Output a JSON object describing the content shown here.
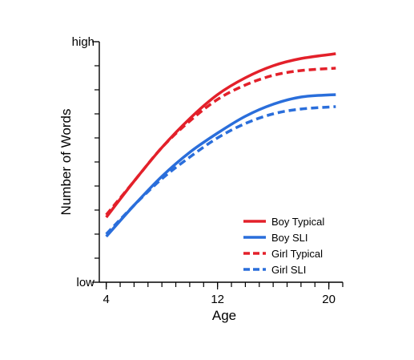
{
  "chart_data": {
    "type": "line",
    "title": "",
    "xlabel": "Age",
    "ylabel": "Number of Words",
    "x_ticks": [
      {
        "value": 4,
        "label": "4"
      },
      {
        "value": 12,
        "label": "12"
      },
      {
        "value": 20,
        "label": "20"
      }
    ],
    "y_ticks": [
      {
        "value": 0,
        "label": "low"
      },
      {
        "value": 1,
        "label": "high"
      }
    ],
    "xlim": [
      3.5,
      21
    ],
    "ylim": [
      0,
      1
    ],
    "x_minor_step": 1,
    "y_minor_step": 0.1,
    "grid": false,
    "legend_position": "bottom-right",
    "series": [
      {
        "name": "Boy Typical",
        "color": "#e3202a",
        "dash": "solid",
        "x": [
          4,
          6,
          8,
          10,
          12,
          14,
          16,
          18,
          20.5
        ],
        "y": [
          0.27,
          0.42,
          0.56,
          0.68,
          0.78,
          0.85,
          0.9,
          0.93,
          0.95
        ]
      },
      {
        "name": "Boy SLI",
        "color": "#2a6edb",
        "dash": "solid",
        "x": [
          4,
          6,
          8,
          10,
          12,
          14,
          16,
          18,
          20.5
        ],
        "y": [
          0.19,
          0.32,
          0.44,
          0.54,
          0.62,
          0.69,
          0.74,
          0.77,
          0.78
        ]
      },
      {
        "name": "Girl Typical",
        "color": "#e3202a",
        "dash": "dashed",
        "x": [
          4,
          6,
          8,
          10,
          12,
          14,
          16,
          18,
          20.5
        ],
        "y": [
          0.28,
          0.42,
          0.56,
          0.67,
          0.76,
          0.82,
          0.86,
          0.88,
          0.89
        ]
      },
      {
        "name": "Girl SLI",
        "color": "#2a6edb",
        "dash": "dashed",
        "x": [
          4,
          6,
          8,
          10,
          12,
          14,
          16,
          18,
          20.5
        ],
        "y": [
          0.2,
          0.32,
          0.43,
          0.52,
          0.6,
          0.66,
          0.7,
          0.72,
          0.73
        ]
      }
    ]
  }
}
